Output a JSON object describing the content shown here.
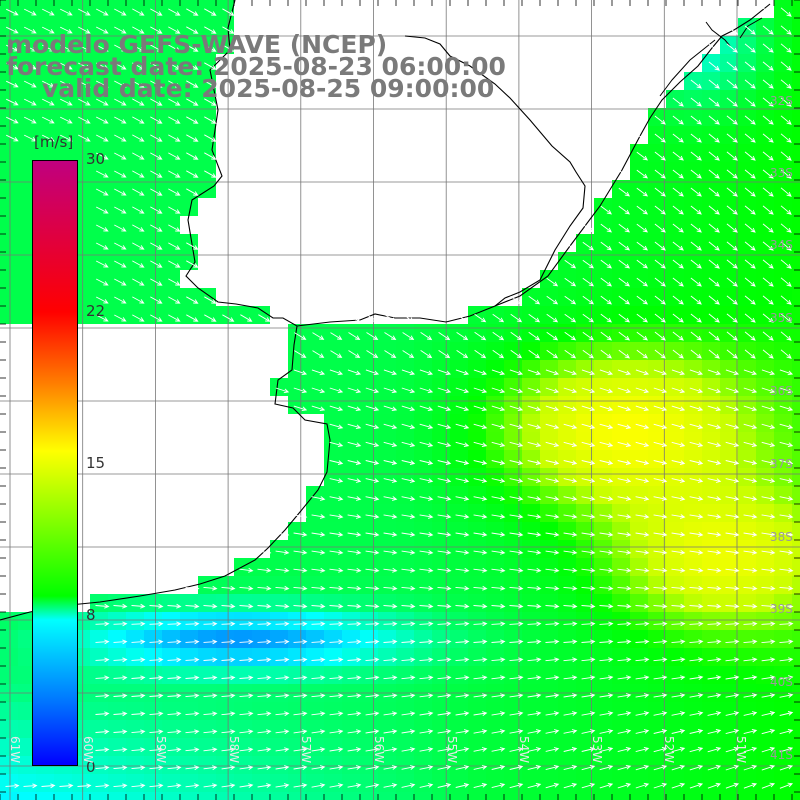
{
  "title": {
    "line1": "modelo GEFS-WAVE (NCEP)",
    "line2": "forecast date: 2025-08-23 06:00:00",
    "line3": "valid date: 2025-08-25 09:00:00"
  },
  "colorbar": {
    "unit": "[m/s]",
    "ticks": [
      "30",
      "22",
      "15",
      "8",
      "0"
    ],
    "tick_values": [
      30,
      22,
      15,
      8,
      0
    ],
    "range": [
      0,
      30
    ]
  },
  "map": {
    "lat_labels": [
      "32S",
      "33S",
      "34S",
      "35S",
      "36S",
      "37S",
      "38S",
      "39S",
      "40S",
      "41S"
    ],
    "lat_values": [
      -32,
      -33,
      -34,
      -35,
      -36,
      -37,
      -38,
      -39,
      -40,
      -41
    ],
    "lon_labels": [
      "61W",
      "60W",
      "59W",
      "58W",
      "57W",
      "56W",
      "55W",
      "54W",
      "53W",
      "52W",
      "51W"
    ],
    "lon_values": [
      -61,
      -60,
      -59,
      -58,
      -57,
      -56,
      -55,
      -54,
      -53,
      -52,
      -51
    ],
    "colors": {
      "land": "#ffffff",
      "grid": "#777777",
      "coast": "#000000",
      "arrows": "#ffffff"
    }
  }
}
